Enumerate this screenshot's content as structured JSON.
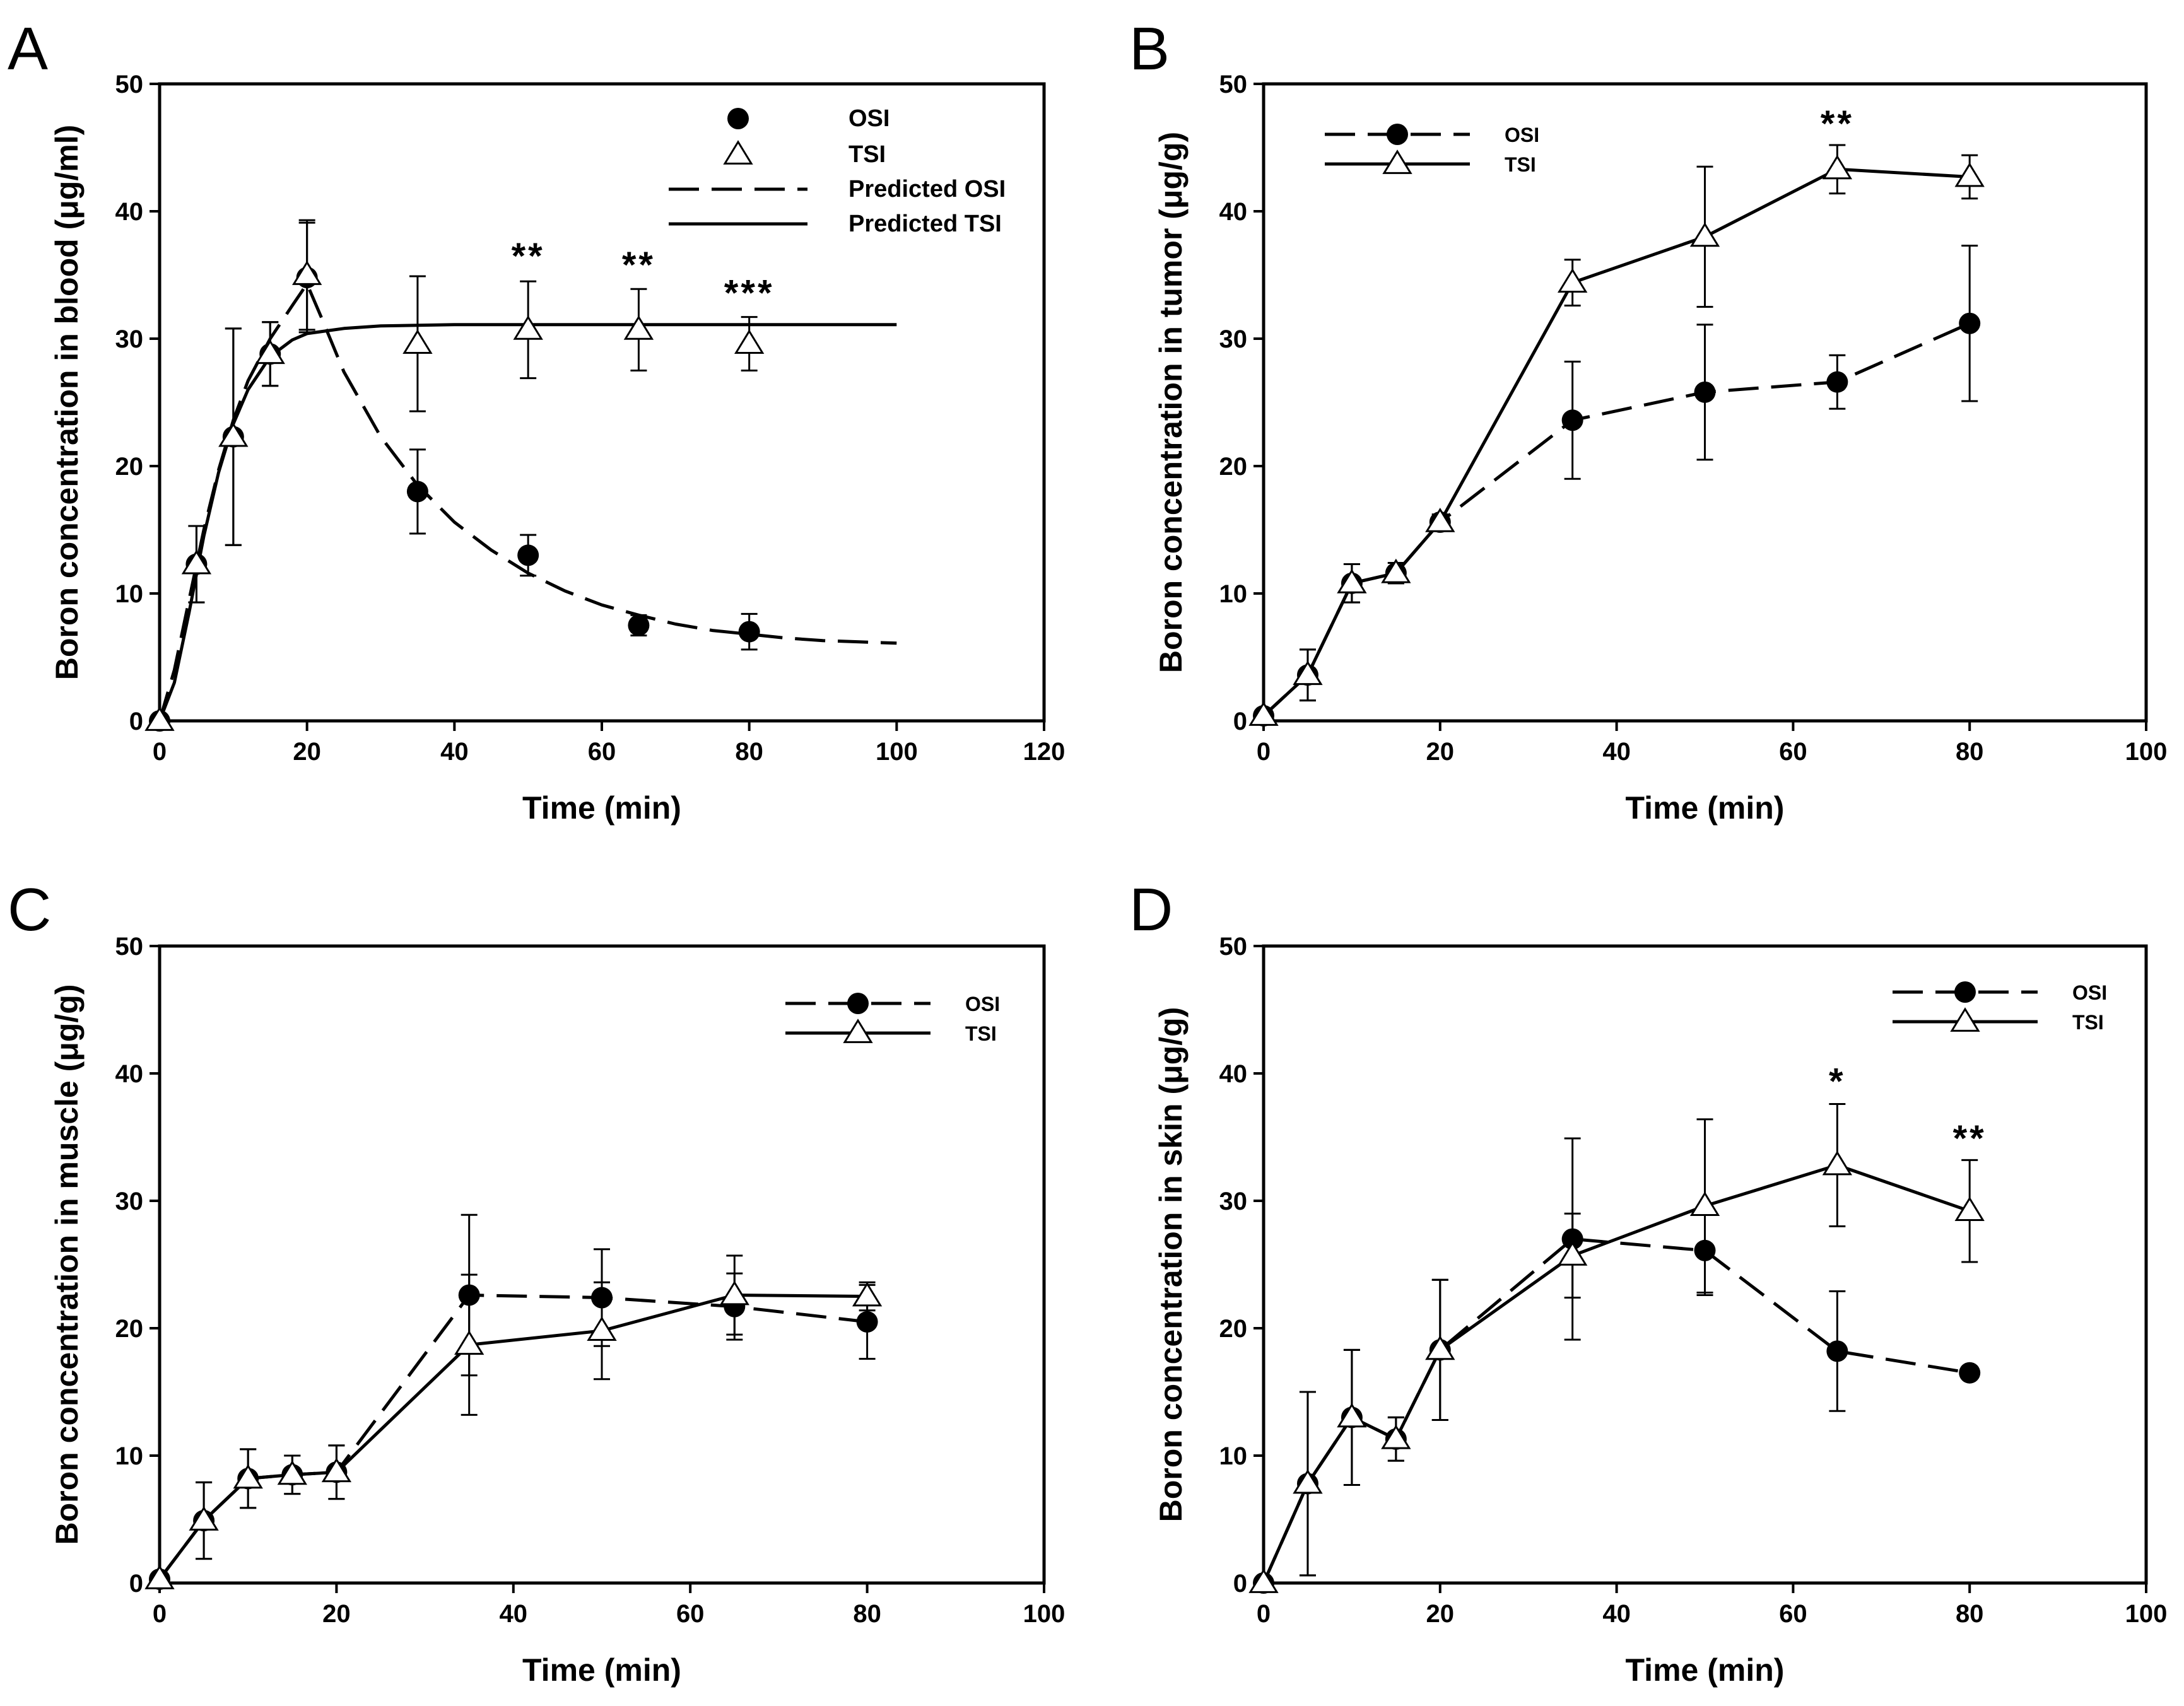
{
  "colors": {
    "ink": "#000000",
    "background": "#ffffff"
  },
  "chart_data": [
    {
      "panel": "A",
      "type": "line",
      "xlabel": "Time (min)",
      "ylabel": "Boron concentration in blood (μg/ml)",
      "xlim": [
        0,
        120
      ],
      "ylim": [
        0,
        50
      ],
      "xticks": [
        0,
        20,
        40,
        60,
        80,
        100,
        120
      ],
      "yticks": [
        0,
        10,
        20,
        30,
        40,
        50
      ],
      "legend_position": "top-right",
      "legend": [
        {
          "label": "OSI",
          "style": "osi-marker"
        },
        {
          "label": "TSI",
          "style": "tsi-marker"
        },
        {
          "label": "Predicted OSI",
          "style": "dashed"
        },
        {
          "label": "Predicted TSI",
          "style": "solid"
        }
      ],
      "series": [
        {
          "name": "OSI",
          "marker": "filled-circle",
          "x": [
            0,
            5,
            10,
            15,
            20,
            35,
            50,
            65,
            80
          ],
          "y": [
            0,
            12.3,
            22.3,
            28.8,
            34.8,
            18.0,
            13.0,
            7.5,
            7.0
          ],
          "err": [
            0,
            3.0,
            8.5,
            2.5,
            4.3,
            3.3,
            1.6,
            0.8,
            1.4
          ]
        },
        {
          "name": "TSI",
          "marker": "open-triangle",
          "x": [
            0,
            5,
            10,
            15,
            20,
            35,
            50,
            65,
            80
          ],
          "y": [
            0,
            12.3,
            22.3,
            28.8,
            35.0,
            29.6,
            30.7,
            30.7,
            29.6
          ],
          "err": [
            0,
            3.0,
            8.5,
            2.5,
            4.3,
            5.3,
            3.8,
            3.2,
            2.1
          ]
        },
        {
          "name": "Predicted OSI",
          "line": "dashed",
          "x": [
            0,
            2,
            4,
            6,
            8,
            10,
            12,
            15,
            18,
            20,
            22,
            25,
            30,
            35,
            40,
            45,
            50,
            55,
            60,
            65,
            70,
            75,
            80,
            85,
            90,
            95,
            100
          ],
          "y": [
            0,
            4.0,
            9.5,
            15.0,
            19.7,
            23.6,
            26.7,
            30.0,
            32.6,
            34.3,
            31.6,
            27.4,
            22.3,
            18.5,
            15.6,
            13.4,
            11.6,
            10.2,
            9.1,
            8.3,
            7.6,
            7.1,
            6.8,
            6.5,
            6.3,
            6.2,
            6.1
          ]
        },
        {
          "name": "Predicted TSI",
          "line": "solid",
          "x": [
            0,
            2,
            4,
            6,
            8,
            10,
            12,
            15,
            18,
            20,
            25,
            30,
            40,
            50,
            60,
            80,
            100
          ],
          "y": [
            0,
            3.0,
            8.5,
            14.5,
            19.5,
            23.3,
            26.0,
            28.6,
            29.9,
            30.4,
            30.8,
            31.0,
            31.1,
            31.1,
            31.1,
            31.1,
            31.1
          ]
        }
      ],
      "annotations": [
        {
          "text": "**",
          "x": 50,
          "y": 35.5
        },
        {
          "text": "**",
          "x": 65,
          "y": 34.8
        },
        {
          "text": "***",
          "x": 80,
          "y": 32.6
        }
      ]
    },
    {
      "panel": "B",
      "type": "line",
      "xlabel": "Time (min)",
      "ylabel": "Boron concentration in tumor (μg/g)",
      "xlim": [
        0,
        100
      ],
      "ylim": [
        0,
        50
      ],
      "xticks": [
        0,
        20,
        40,
        60,
        80,
        100
      ],
      "yticks": [
        0,
        10,
        20,
        30,
        40,
        50
      ],
      "legend_position": "top-left",
      "legend": [
        {
          "label": "OSI",
          "style": "osi-line"
        },
        {
          "label": "TSI",
          "style": "tsi-line"
        }
      ],
      "series": [
        {
          "name": "OSI",
          "marker": "filled-circle",
          "line": "dashed",
          "x": [
            0,
            5,
            10,
            15,
            20,
            35,
            50,
            65,
            80
          ],
          "y": [
            0.4,
            3.6,
            10.8,
            11.6,
            15.6,
            23.6,
            25.8,
            26.6,
            31.2
          ],
          "err": [
            0.3,
            2.0,
            1.5,
            0.8,
            0.6,
            4.6,
            5.3,
            2.1,
            6.1
          ]
        },
        {
          "name": "TSI",
          "marker": "open-triangle",
          "line": "solid",
          "x": [
            0,
            5,
            10,
            15,
            20,
            35,
            50,
            65,
            80
          ],
          "y": [
            0.4,
            3.6,
            10.8,
            11.6,
            15.6,
            34.4,
            38.0,
            43.3,
            42.7
          ],
          "err": [
            0.3,
            2.0,
            1.5,
            0.8,
            0.6,
            1.8,
            5.5,
            1.9,
            1.7
          ]
        }
      ],
      "annotations": [
        {
          "text": "**",
          "x": 65,
          "y": 45.9
        }
      ]
    },
    {
      "panel": "C",
      "type": "line",
      "xlabel": "Time (min)",
      "ylabel": "Boron concentration in muscle (μg/g)",
      "xlim": [
        0,
        100
      ],
      "ylim": [
        0,
        50
      ],
      "xticks": [
        0,
        20,
        40,
        60,
        80,
        100
      ],
      "yticks": [
        0,
        10,
        20,
        30,
        40,
        50
      ],
      "legend_position": "top-right",
      "legend": [
        {
          "label": "OSI",
          "style": "osi-line"
        },
        {
          "label": "TSI",
          "style": "tsi-line"
        }
      ],
      "series": [
        {
          "name": "OSI",
          "marker": "filled-circle",
          "line": "dashed",
          "x": [
            0,
            5,
            10,
            15,
            20,
            35,
            50,
            65,
            80
          ],
          "y": [
            0.3,
            4.9,
            8.2,
            8.5,
            8.7,
            22.6,
            22.4,
            21.7,
            20.5
          ],
          "err": [
            0.3,
            3.0,
            2.3,
            1.5,
            2.1,
            6.3,
            3.8,
            2.6,
            2.9
          ]
        },
        {
          "name": "TSI",
          "marker": "open-triangle",
          "line": "solid",
          "x": [
            0,
            5,
            10,
            15,
            20,
            35,
            50,
            65,
            80
          ],
          "y": [
            0.3,
            4.9,
            8.2,
            8.5,
            8.7,
            18.7,
            19.8,
            22.6,
            22.5
          ],
          "err": [
            0.3,
            3.0,
            2.3,
            1.5,
            2.1,
            5.5,
            3.8,
            3.1,
            1.1
          ]
        }
      ],
      "annotations": []
    },
    {
      "panel": "D",
      "type": "line",
      "xlabel": "Time (min)",
      "ylabel": "Boron concentration in skin (μg/g)",
      "xlim": [
        0,
        100
      ],
      "ylim": [
        0,
        50
      ],
      "xticks": [
        0,
        20,
        40,
        60,
        80,
        100
      ],
      "yticks": [
        0,
        10,
        20,
        30,
        40,
        50
      ],
      "legend_position": "top-right",
      "legend": [
        {
          "label": "OSI",
          "style": "osi-line"
        },
        {
          "label": "TSI",
          "style": "tsi-line"
        }
      ],
      "series": [
        {
          "name": "OSI",
          "marker": "filled-circle",
          "line": "dashed",
          "x": [
            0,
            5,
            10,
            15,
            20,
            35,
            50,
            65,
            80
          ],
          "y": [
            0,
            7.8,
            13.0,
            11.3,
            18.3,
            27.0,
            26.1,
            18.2,
            16.5
          ],
          "err": [
            0,
            7.2,
            5.3,
            1.7,
            5.5,
            7.9,
            3.5,
            4.7,
            0.4
          ]
        },
        {
          "name": "TSI",
          "marker": "open-triangle",
          "line": "solid",
          "x": [
            0,
            5,
            10,
            15,
            20,
            35,
            50,
            65,
            80
          ],
          "y": [
            0,
            7.8,
            13.0,
            11.3,
            18.3,
            25.7,
            29.6,
            32.8,
            29.2
          ],
          "err": [
            0,
            7.2,
            5.3,
            1.7,
            5.5,
            3.3,
            6.8,
            4.8,
            4.0
          ]
        }
      ],
      "annotations": [
        {
          "text": "*",
          "x": 65,
          "y": 38.4
        },
        {
          "text": "**",
          "x": 80,
          "y": 33.9
        }
      ]
    }
  ]
}
